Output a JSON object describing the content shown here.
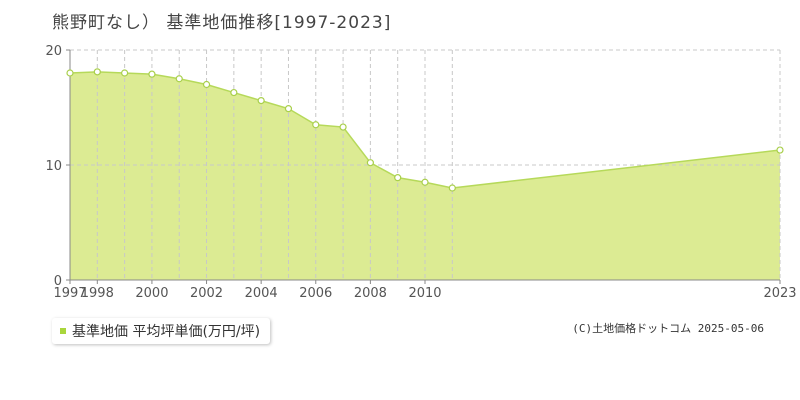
{
  "title": "熊野町なし） 基準地価推移[1997-2023]",
  "legend": {
    "label": "基準地価 平均坪単価(万円/坪)",
    "swatch_color": "#a9d63c"
  },
  "credit": "(C)土地価格ドットコム 2025-05-06",
  "colors": {
    "area_fill": "#dceb93",
    "area_stroke": "#b6d95a",
    "point_fill": "#ffffff",
    "point_stroke": "#a9cf4c",
    "grid": "#c8c8c8",
    "axis": "#888888"
  },
  "chart_data": {
    "type": "area",
    "title": "熊野町なし） 基準地価推移[1997-2023]",
    "xlabel": "",
    "ylabel": "",
    "x": [
      1997,
      1998,
      1999,
      2000,
      2001,
      2002,
      2003,
      2004,
      2005,
      2006,
      2007,
      2008,
      2009,
      2010,
      2011,
      2023
    ],
    "series": [
      {
        "name": "基準地価 平均坪単価(万円/坪)",
        "values": [
          18.0,
          18.1,
          18.0,
          17.9,
          17.5,
          17.0,
          16.3,
          15.6,
          14.9,
          13.5,
          13.3,
          10.2,
          8.9,
          8.5,
          8.0,
          11.3
        ]
      }
    ],
    "x_tick_labels": [
      "1997",
      "1998",
      "2000",
      "2002",
      "2004",
      "2006",
      "2008",
      "2010",
      "2023"
    ],
    "y_ticks": [
      0,
      10,
      20
    ],
    "ylim": [
      0,
      20
    ],
    "grid": true,
    "legend_position": "bottom-left"
  }
}
